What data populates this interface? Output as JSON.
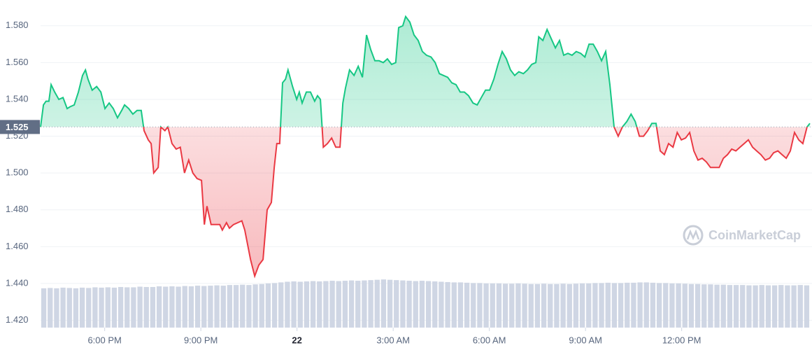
{
  "chart_data": {
    "type": "line",
    "x": [
      0,
      0.09,
      0.17,
      0.26,
      0.33,
      0.44,
      0.57,
      0.7,
      0.83,
      0.92,
      1.05,
      1.18,
      1.31,
      1.4,
      1.48,
      1.61,
      1.75,
      1.88,
      2.01,
      2.14,
      2.27,
      2.4,
      2.53,
      2.62,
      2.75,
      2.88,
      3.01,
      3.14,
      3.23,
      3.36,
      3.45,
      3.53,
      3.67,
      3.75,
      3.88,
      3.97,
      4.1,
      4.23,
      4.36,
      4.49,
      4.62,
      4.75,
      4.88,
      5.02,
      5.11,
      5.19,
      5.32,
      5.46,
      5.59,
      5.67,
      5.8,
      5.89,
      6.02,
      6.15,
      6.28,
      6.37,
      6.46,
      6.55,
      6.68,
      6.81,
      6.94,
      7.07,
      7.2,
      7.29,
      7.37,
      7.46,
      7.55,
      7.64,
      7.72,
      7.86,
      7.99,
      8.07,
      8.16,
      8.29,
      8.42,
      8.55,
      8.64,
      8.73,
      8.82,
      8.95,
      9.08,
      9.21,
      9.34,
      9.43,
      9.51,
      9.64,
      9.78,
      9.91,
      10.04,
      10.17,
      10.3,
      10.43,
      10.56,
      10.69,
      10.82,
      10.95,
      11.08,
      11.17,
      11.3,
      11.39,
      11.52,
      11.65,
      11.78,
      11.91,
      12.04,
      12.18,
      12.31,
      12.44,
      12.57,
      12.7,
      12.83,
      12.96,
      13.09,
      13.22,
      13.35,
      13.49,
      13.62,
      13.75,
      13.88,
      14.01,
      14.14,
      14.27,
      14.4,
      14.53,
      14.66,
      14.79,
      14.92,
      15.06,
      15.19,
      15.32,
      15.45,
      15.54,
      15.67,
      15.8,
      15.93,
      16.06,
      16.19,
      16.32,
      16.45,
      16.58,
      16.71,
      16.85,
      16.98,
      17.11,
      17.24,
      17.37,
      17.5,
      17.63,
      17.76,
      17.89,
      18.02,
      18.15,
      18.29,
      18.42,
      18.55,
      18.68,
      18.81,
      18.94,
      19.07,
      19.2,
      19.33,
      19.46,
      19.59,
      19.73,
      19.86,
      19.99,
      20.12,
      20.25,
      20.38,
      20.51,
      20.64,
      20.77,
      20.9,
      21.03,
      21.17,
      21.3,
      21.43,
      21.56,
      21.69,
      21.82,
      21.95,
      22.08,
      22.21,
      22.34,
      22.47,
      22.61,
      22.74,
      22.87,
      23.0,
      23.13,
      23.26,
      23.39,
      23.52,
      23.65,
      23.78,
      23.91,
      24.0
    ],
    "values": [
      1.525,
      1.537,
      1.539,
      1.539,
      1.548,
      1.544,
      1.54,
      1.541,
      1.535,
      1.536,
      1.537,
      1.544,
      1.553,
      1.556,
      1.551,
      1.545,
      1.547,
      1.544,
      1.535,
      1.538,
      1.535,
      1.53,
      1.534,
      1.537,
      1.535,
      1.532,
      1.534,
      1.534,
      1.523,
      1.518,
      1.516,
      1.5,
      1.503,
      1.525,
      1.523,
      1.525,
      1.516,
      1.513,
      1.514,
      1.5,
      1.507,
      1.5,
      1.497,
      1.496,
      1.472,
      1.482,
      1.472,
      1.472,
      1.472,
      1.469,
      1.473,
      1.47,
      1.472,
      1.473,
      1.474,
      1.469,
      1.461,
      1.453,
      1.444,
      1.45,
      1.453,
      1.48,
      1.484,
      1.503,
      1.516,
      1.516,
      1.549,
      1.551,
      1.556,
      1.547,
      1.54,
      1.544,
      1.538,
      1.544,
      1.544,
      1.539,
      1.542,
      1.54,
      1.514,
      1.516,
      1.519,
      1.514,
      1.514,
      1.538,
      1.546,
      1.556,
      1.553,
      1.558,
      1.552,
      1.575,
      1.567,
      1.561,
      1.561,
      1.56,
      1.562,
      1.559,
      1.56,
      1.579,
      1.58,
      1.585,
      1.582,
      1.575,
      1.572,
      1.566,
      1.564,
      1.563,
      1.56,
      1.554,
      1.553,
      1.552,
      1.549,
      1.548,
      1.544,
      1.544,
      1.542,
      1.538,
      1.537,
      1.541,
      1.545,
      1.545,
      1.551,
      1.559,
      1.566,
      1.562,
      1.556,
      1.553,
      1.555,
      1.554,
      1.556,
      1.559,
      1.56,
      1.574,
      1.572,
      1.578,
      1.573,
      1.568,
      1.572,
      1.564,
      1.565,
      1.564,
      1.566,
      1.565,
      1.563,
      1.57,
      1.57,
      1.566,
      1.561,
      1.566,
      1.548,
      1.525,
      1.52,
      1.525,
      1.528,
      1.532,
      1.528,
      1.52,
      1.52,
      1.523,
      1.527,
      1.527,
      1.512,
      1.51,
      1.516,
      1.514,
      1.522,
      1.518,
      1.519,
      1.522,
      1.512,
      1.507,
      1.508,
      1.506,
      1.503,
      1.503,
      1.503,
      1.508,
      1.51,
      1.513,
      1.512,
      1.514,
      1.516,
      1.518,
      1.514,
      1.512,
      1.51,
      1.507,
      1.508,
      1.511,
      1.512,
      1.51,
      1.508,
      1.512,
      1.522,
      1.518,
      1.516,
      1.525,
      1.527
    ],
    "up_color": "#16c784",
    "down_color": "#ea3943",
    "baseline": 1.525,
    "volume": {
      "color": "#cfd6e4",
      "x": [
        0.1,
        0.3,
        0.5,
        0.7,
        0.9,
        1.1,
        1.3,
        1.5,
        1.7,
        1.9,
        2.1,
        2.3,
        2.5,
        2.7,
        2.9,
        3.1,
        3.3,
        3.5,
        3.7,
        3.9,
        4.1,
        4.3,
        4.5,
        4.7,
        4.9,
        5.1,
        5.3,
        5.5,
        5.7,
        5.9,
        6.1,
        6.3,
        6.5,
        6.7,
        6.9,
        7.1,
        7.3,
        7.5,
        7.7,
        7.9,
        8.1,
        8.3,
        8.5,
        8.7,
        8.9,
        9.1,
        9.3,
        9.5,
        9.7,
        9.9,
        10.1,
        10.3,
        10.5,
        10.7,
        10.9,
        11.1,
        11.3,
        11.5,
        11.7,
        11.9,
        12.1,
        12.3,
        12.5,
        12.7,
        12.9,
        13.1,
        13.3,
        13.5,
        13.7,
        13.9,
        14.1,
        14.3,
        14.5,
        14.7,
        14.9,
        15.1,
        15.3,
        15.5,
        15.7,
        15.9,
        16.1,
        16.3,
        16.5,
        16.7,
        16.9,
        17.1,
        17.3,
        17.5,
        17.7,
        17.9,
        18.1,
        18.3,
        18.5,
        18.7,
        18.9,
        19.1,
        19.3,
        19.5,
        19.7,
        19.9,
        20.1,
        20.3,
        20.5,
        20.7,
        20.9,
        21.1,
        21.3,
        21.5,
        21.7,
        21.9,
        22.1,
        22.3,
        22.5,
        22.7,
        22.9,
        23.1,
        23.3,
        23.5,
        23.7,
        23.9
      ],
      "values": [
        12.0,
        12.1,
        12.0,
        12.2,
        12.1,
        12.0,
        12.2,
        12.1,
        12.3,
        12.2,
        12.3,
        12.2,
        12.4,
        12.3,
        12.3,
        12.5,
        12.4,
        12.4,
        12.6,
        12.5,
        12.6,
        12.5,
        12.7,
        12.6,
        12.8,
        12.7,
        12.8,
        12.9,
        12.8,
        13.0,
        13.0,
        13.1,
        13.0,
        13.2,
        13.3,
        13.5,
        13.6,
        13.8,
        14.0,
        14.1,
        14.0,
        14.1,
        14.2,
        14.1,
        14.2,
        14.3,
        14.2,
        14.3,
        14.4,
        14.3,
        14.4,
        14.5,
        14.6,
        14.7,
        14.6,
        14.5,
        14.4,
        14.3,
        14.2,
        14.3,
        14.2,
        14.1,
        14.0,
        13.9,
        13.8,
        13.8,
        13.7,
        13.6,
        13.6,
        13.5,
        13.5,
        13.5,
        13.4,
        13.4,
        13.5,
        13.4,
        13.3,
        13.3,
        13.4,
        13.3,
        13.3,
        13.4,
        13.3,
        13.4,
        13.5,
        13.5,
        13.6,
        13.6,
        13.7,
        13.6,
        13.6,
        13.7,
        13.7,
        13.8,
        13.8,
        13.7,
        13.6,
        13.6,
        13.5,
        13.5,
        13.4,
        13.3,
        13.3,
        13.2,
        13.2,
        13.1,
        13.1,
        13.0,
        13.0,
        13.0,
        12.9,
        12.9,
        13.0,
        12.9,
        12.9,
        13.0,
        12.9,
        12.9,
        13.0,
        12.9
      ],
      "y2lim": [
        0,
        100
      ]
    },
    "xlim": [
      0,
      24
    ],
    "xticks": [
      {
        "value": 2,
        "label": "6:00 PM"
      },
      {
        "value": 5,
        "label": "9:00 PM"
      },
      {
        "value": 8,
        "label": "22"
      },
      {
        "value": 11,
        "label": "3:00 AM"
      },
      {
        "value": 14,
        "label": "6:00 AM"
      },
      {
        "value": 17,
        "label": "9:00 AM"
      },
      {
        "value": 20,
        "label": "12:00 PM"
      }
    ],
    "ylim": [
      1.416,
      1.594
    ],
    "yticks": [
      {
        "value": 1.42,
        "label": "1.420"
      },
      {
        "value": 1.44,
        "label": "1.440"
      },
      {
        "value": 1.46,
        "label": "1.460"
      },
      {
        "value": 1.48,
        "label": "1.480"
      },
      {
        "value": 1.5,
        "label": "1.500"
      },
      {
        "value": 1.52,
        "label": "1.520"
      },
      {
        "value": 1.54,
        "label": "1.540"
      },
      {
        "value": 1.56,
        "label": "1.560"
      },
      {
        "value": 1.58,
        "label": "1.580"
      }
    ],
    "grid": true,
    "watermark": "CoinMarketCap"
  }
}
